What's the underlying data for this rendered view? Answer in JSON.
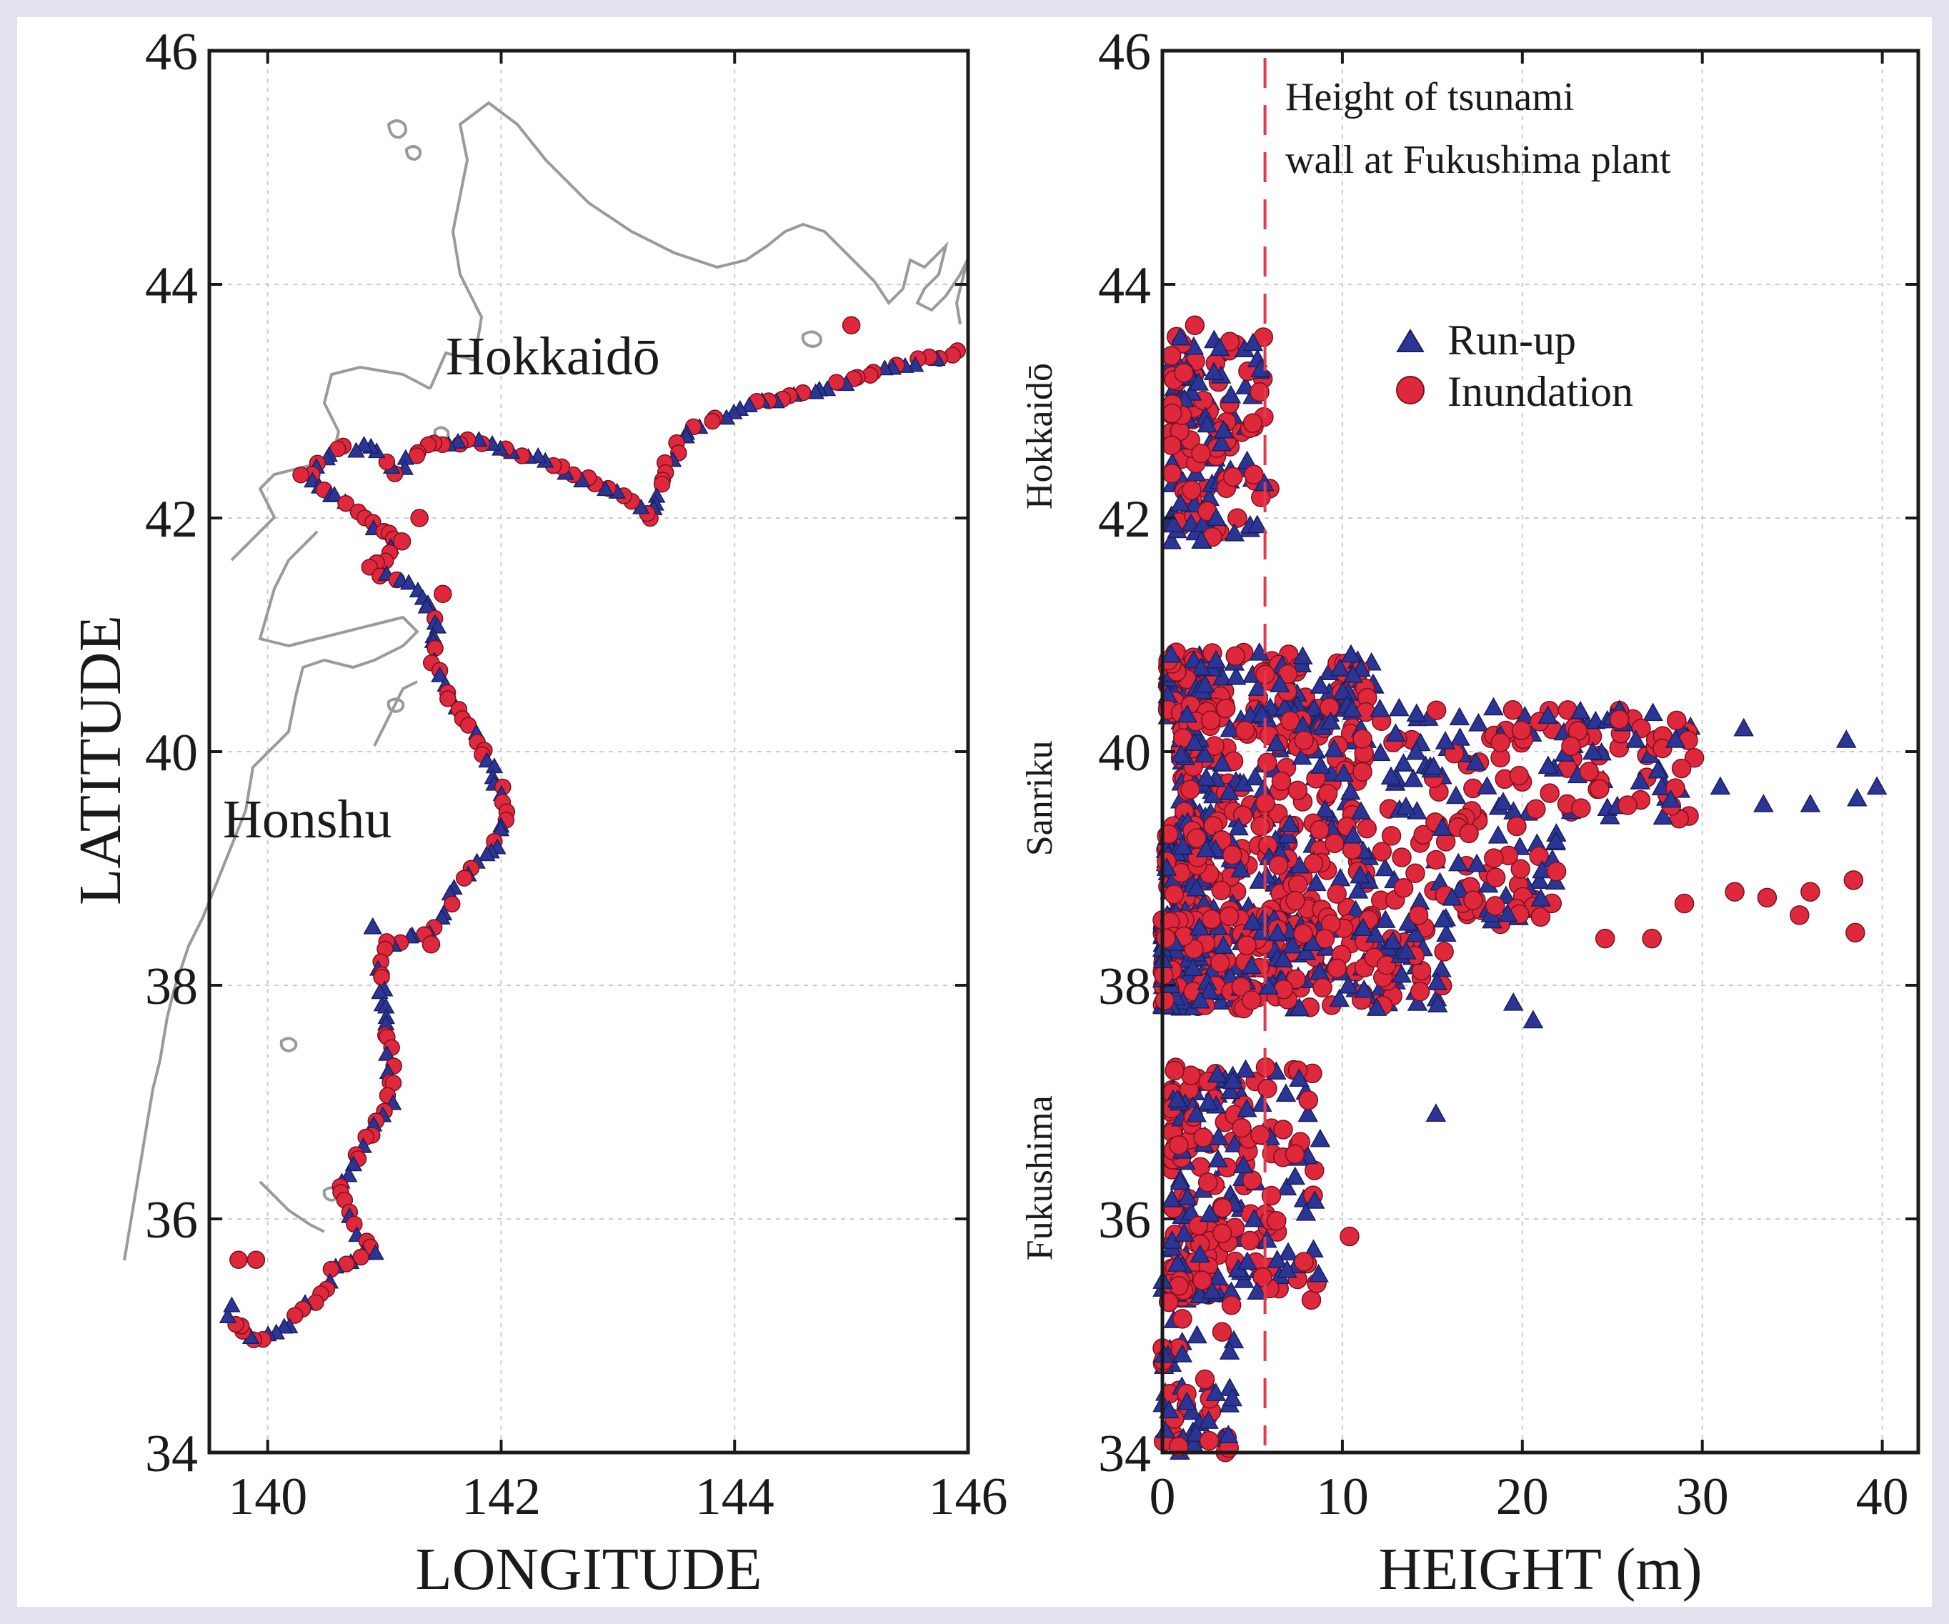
{
  "colors": {
    "runup": "#2b3595",
    "inundation": "#e0283c",
    "coast": "#9a9a9a",
    "wall": "#e23a4a",
    "background": "#e4e0f0"
  },
  "chart_data": [
    {
      "type": "scatter",
      "title": "",
      "xlabel": "LONGITUDE",
      "ylabel": "LATITUDE",
      "xlim": [
        139.5,
        146
      ],
      "ylim": [
        34,
        46
      ],
      "xticks": [
        "140",
        "142",
        "144",
        "146"
      ],
      "yticks": [
        "34",
        "36",
        "38",
        "40",
        "42",
        "44",
        "46"
      ],
      "grid": true,
      "annotations": {
        "hokkaido": "Hokkaidō",
        "honshu": "Honshu"
      },
      "coast_track": [
        [
          145.9,
          43.42
        ],
        [
          145.4,
          43.3
        ],
        [
          145.0,
          43.18
        ],
        [
          144.6,
          43.05
        ],
        [
          144.1,
          42.97
        ],
        [
          143.6,
          42.75
        ],
        [
          143.4,
          42.4
        ],
        [
          143.3,
          42.0
        ],
        [
          143.0,
          42.2
        ],
        [
          142.7,
          42.35
        ],
        [
          142.3,
          42.5
        ],
        [
          141.9,
          42.62
        ],
        [
          141.6,
          42.67
        ],
        [
          141.3,
          42.58
        ],
        [
          141.1,
          42.4
        ],
        [
          140.9,
          42.6
        ],
        [
          140.6,
          42.6
        ],
        [
          140.3,
          42.35
        ],
        [
          140.7,
          42.1
        ],
        [
          141.1,
          41.8
        ],
        [
          140.9,
          41.55
        ],
        [
          141.3,
          41.4
        ],
        [
          141.45,
          41.1
        ],
        [
          141.4,
          40.8
        ],
        [
          141.6,
          40.4
        ],
        [
          141.8,
          40.1
        ],
        [
          141.95,
          39.8
        ],
        [
          142.05,
          39.5
        ],
        [
          141.95,
          39.2
        ],
        [
          141.7,
          38.95
        ],
        [
          141.55,
          38.7
        ],
        [
          141.4,
          38.45
        ],
        [
          141.0,
          38.35
        ],
        [
          140.95,
          38.1
        ],
        [
          141.0,
          37.8
        ],
        [
          141.05,
          37.4
        ],
        [
          141.05,
          37.0
        ],
        [
          140.9,
          36.8
        ],
        [
          140.75,
          36.5
        ],
        [
          140.6,
          36.2
        ],
        [
          140.75,
          35.95
        ],
        [
          140.9,
          35.7
        ],
        [
          140.6,
          35.6
        ],
        [
          140.4,
          35.3
        ],
        [
          140.2,
          35.1
        ],
        [
          139.9,
          34.95
        ],
        [
          139.7,
          35.1
        ],
        [
          139.65,
          35.3
        ]
      ],
      "scatter_points": [
        [
          145.0,
          43.65,
          "inundation"
        ],
        [
          139.9,
          35.65,
          "inundation"
        ],
        [
          139.75,
          35.65,
          "inundation"
        ],
        [
          141.3,
          42.0,
          "inundation"
        ],
        [
          141.15,
          41.8,
          "inundation"
        ],
        [
          141.5,
          41.35,
          "inundation"
        ],
        [
          140.9,
          38.5,
          "runup"
        ],
        [
          141.4,
          38.35,
          "inundation"
        ]
      ]
    },
    {
      "type": "scatter",
      "title": "",
      "xlabel": "HEIGHT (m)",
      "ylabel": "",
      "xlim": [
        0,
        42
      ],
      "ylim": [
        34,
        46
      ],
      "xticks": [
        "0",
        "10",
        "20",
        "30",
        "40"
      ],
      "yticks": [
        "34",
        "36",
        "38",
        "40",
        "42",
        "44",
        "46"
      ],
      "grid": true,
      "series": [
        {
          "name": "Run-up",
          "marker": "triangle",
          "color_key": "runup"
        },
        {
          "name": "Inundation",
          "marker": "circle",
          "color_key": "inundation"
        }
      ],
      "reference_line": {
        "x": 5.7,
        "label_line1": "Height of tsunami",
        "label_line2": "wall at Fukushima plant"
      },
      "regions": [
        {
          "label": "Hokkaidō",
          "lat_center": 42.7
        },
        {
          "label": "Sanriku",
          "lat_center": 39.6
        },
        {
          "label": "Fukushima",
          "lat_center": 36.35
        }
      ],
      "clusters": [
        {
          "lat": [
            41.8,
            43.6
          ],
          "h": [
            0.5,
            6.0
          ],
          "n": 160
        },
        {
          "lat": [
            40.3,
            40.85
          ],
          "h": [
            0.3,
            12.0
          ],
          "n": 160
        },
        {
          "lat": [
            39.4,
            40.4
          ],
          "h": [
            1.0,
            30.0
          ],
          "n": 340
        },
        {
          "lat": [
            38.5,
            39.4
          ],
          "h": [
            0.2,
            22.0
          ],
          "n": 300
        },
        {
          "lat": [
            37.8,
            38.6
          ],
          "h": [
            0.0,
            16.0
          ],
          "n": 340
        },
        {
          "lat": [
            35.3,
            37.3
          ],
          "h": [
            0.5,
            9.0
          ],
          "n": 240
        },
        {
          "lat": [
            34.0,
            35.5
          ],
          "h": [
            0.0,
            4.0
          ],
          "n": 70
        }
      ],
      "notable_points": [
        [
          32.3,
          40.2,
          "runup"
        ],
        [
          38.0,
          40.1,
          "runup"
        ],
        [
          39.7,
          39.7,
          "runup"
        ],
        [
          38.6,
          39.6,
          "runup"
        ],
        [
          36.0,
          39.55,
          "runup"
        ],
        [
          33.4,
          39.55,
          "runup"
        ],
        [
          31.0,
          39.7,
          "runup"
        ],
        [
          28.5,
          40.1,
          "runup"
        ],
        [
          26.3,
          40.1,
          "runup"
        ],
        [
          38.4,
          38.9,
          "inundation"
        ],
        [
          38.5,
          38.45,
          "inundation"
        ],
        [
          35.4,
          38.6,
          "inundation"
        ],
        [
          36.0,
          38.8,
          "inundation"
        ],
        [
          33.6,
          38.75,
          "inundation"
        ],
        [
          31.8,
          38.8,
          "inundation"
        ],
        [
          29.0,
          38.7,
          "inundation"
        ],
        [
          27.2,
          38.4,
          "inundation"
        ],
        [
          24.6,
          38.4,
          "inundation"
        ],
        [
          15.2,
          36.9,
          "runup"
        ],
        [
          10.4,
          35.85,
          "inundation"
        ],
        [
          7.6,
          37.2,
          "runup"
        ],
        [
          20.6,
          37.7,
          "runup"
        ],
        [
          19.5,
          37.85,
          "runup"
        ],
        [
          0.9,
          34.05,
          "inundation"
        ],
        [
          2.6,
          34.1,
          "inundation"
        ],
        [
          3.0,
          42.0,
          "runup"
        ],
        [
          3.4,
          42.75,
          "runup"
        ],
        [
          1.8,
          43.65,
          "inundation"
        ]
      ]
    }
  ],
  "legend": {
    "runup_label": "Run-up",
    "inundation_label": "Inundation"
  }
}
